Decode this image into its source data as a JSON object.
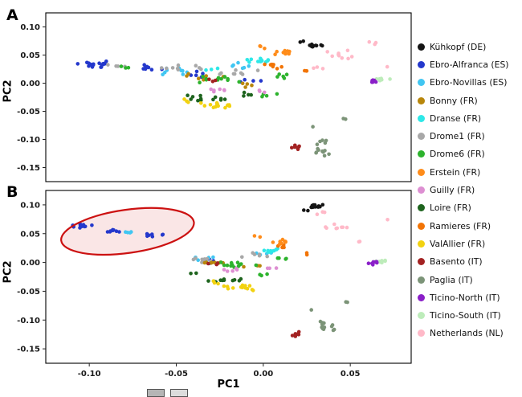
{
  "figure": {
    "panel_a_label": "A",
    "panel_b_label": "B",
    "xlabel": "PC1",
    "ylabel": "PC2",
    "crop_boxes": [
      {
        "name": "cropped-legend-box-1",
        "color": "#b5b5b5"
      },
      {
        "name": "cropped-legend-box-2",
        "color": "#dcdcdc"
      }
    ]
  },
  "legend": {
    "items": [
      {
        "label": "Kühkopf (DE)",
        "color": "#151515"
      },
      {
        "label": "Ebro-Alfranca (ES)",
        "color": "#2438cc"
      },
      {
        "label": "Ebro-Novillas (ES)",
        "color": "#41c6f2"
      },
      {
        "label": "Bonny (FR)",
        "color": "#b8860b"
      },
      {
        "label": "Dranse (FR)",
        "color": "#2ee8e8"
      },
      {
        "label": "Drome1 (FR)",
        "color": "#a8a8a8"
      },
      {
        "label": "Drome6 (FR)",
        "color": "#2db32d"
      },
      {
        "label": "Erstein (FR)",
        "color": "#ff8c1a"
      },
      {
        "label": "Guilly (FR)",
        "color": "#dd8fd2"
      },
      {
        "label": "Loire (FR)",
        "color": "#1e641e"
      },
      {
        "label": "Ramieres (FR)",
        "color": "#f27405"
      },
      {
        "label": "ValAllier (FR)",
        "color": "#f2d210"
      },
      {
        "label": "Basento (IT)",
        "color": "#a32222"
      },
      {
        "label": "Paglia (IT)",
        "color": "#7c9478"
      },
      {
        "label": "Ticino-North (IT)",
        "color": "#8a1fc8"
      },
      {
        "label": "Ticino-South (IT)",
        "color": "#bdecba"
      },
      {
        "label": "Netherlands (NL)",
        "color": "#ffb9c8"
      }
    ]
  },
  "chart_data": [
    {
      "type": "scatter",
      "panel": "A",
      "xlabel": "PC1",
      "ylabel": "PC2",
      "xlim": [
        -0.125,
        0.085
      ],
      "ylim": [
        -0.175,
        0.125
      ],
      "xticks": [
        -0.1,
        -0.05,
        0.0,
        0.05
      ],
      "yticks": [
        0.1,
        0.05,
        0.0,
        -0.05,
        -0.1,
        -0.15
      ],
      "show_x_tick_labels": false,
      "series": [
        {
          "name": "Ebro-Alfranca (ES)",
          "clusters": [
            {
              "x": -0.097,
              "y": 0.033,
              "rx": 0.013,
              "ry": 0.007,
              "n": 20
            },
            {
              "x": -0.066,
              "y": 0.027,
              "rx": 0.009,
              "ry": 0.006,
              "n": 9
            },
            {
              "x": -0.038,
              "y": 0.016,
              "rx": 0.012,
              "ry": 0.007,
              "n": 6
            },
            {
              "x": -0.006,
              "y": 0.004,
              "rx": 0.009,
              "ry": 0.005,
              "n": 4
            }
          ]
        },
        {
          "name": "Ebro-Novillas (ES)",
          "clusters": [
            {
              "x": -0.05,
              "y": 0.022,
              "rx": 0.014,
              "ry": 0.008,
              "n": 9
            },
            {
              "x": -0.013,
              "y": 0.03,
              "rx": 0.011,
              "ry": 0.008,
              "n": 6
            }
          ]
        },
        {
          "name": "Drome1 (FR)",
          "clusters": [
            {
              "x": -0.085,
              "y": 0.031,
              "rx": 0.009,
              "ry": 0.005,
              "n": 4
            },
            {
              "x": -0.05,
              "y": 0.027,
              "rx": 0.018,
              "ry": 0.008,
              "n": 9
            },
            {
              "x": -0.012,
              "y": 0.018,
              "rx": 0.014,
              "ry": 0.009,
              "n": 8
            }
          ]
        },
        {
          "name": "Bonny (FR)",
          "clusters": [
            {
              "x": -0.034,
              "y": 0.012,
              "rx": 0.014,
              "ry": 0.007,
              "n": 8
            },
            {
              "x": -0.009,
              "y": -0.004,
              "rx": 0.009,
              "ry": 0.005,
              "n": 4
            }
          ]
        },
        {
          "name": "Drome6 (FR)",
          "clusters": [
            {
              "x": -0.08,
              "y": 0.03,
              "rx": 0.007,
              "ry": 0.005,
              "n": 3
            },
            {
              "x": -0.026,
              "y": 0.007,
              "rx": 0.017,
              "ry": 0.008,
              "n": 12
            },
            {
              "x": 0.011,
              "y": 0.011,
              "rx": 0.008,
              "ry": 0.007,
              "n": 5
            },
            {
              "x": 0.002,
              "y": -0.02,
              "rx": 0.007,
              "ry": 0.005,
              "n": 4
            }
          ]
        },
        {
          "name": "Guilly (FR)",
          "clusters": [
            {
              "x": -0.028,
              "y": -0.012,
              "rx": 0.01,
              "ry": 0.006,
              "n": 6
            },
            {
              "x": 0.0,
              "y": -0.015,
              "rx": 0.005,
              "ry": 0.004,
              "n": 3
            }
          ]
        },
        {
          "name": "Loire (FR)",
          "clusters": [
            {
              "x": -0.033,
              "y": -0.028,
              "rx": 0.013,
              "ry": 0.007,
              "n": 12
            },
            {
              "x": -0.009,
              "y": -0.018,
              "rx": 0.007,
              "ry": 0.005,
              "n": 4
            }
          ]
        },
        {
          "name": "ValAllier (FR)",
          "clusters": [
            {
              "x": -0.024,
              "y": -0.04,
              "rx": 0.013,
              "ry": 0.006,
              "n": 14
            },
            {
              "x": -0.042,
              "y": -0.031,
              "rx": 0.005,
              "ry": 0.004,
              "n": 3
            }
          ]
        },
        {
          "name": "Dranse (FR)",
          "clusters": [
            {
              "x": -0.001,
              "y": 0.04,
              "rx": 0.009,
              "ry": 0.006,
              "n": 12
            },
            {
              "x": -0.029,
              "y": 0.024,
              "rx": 0.006,
              "ry": 0.004,
              "n": 3
            }
          ]
        },
        {
          "name": "Ramieres (FR)",
          "clusters": [
            {
              "x": 0.006,
              "y": 0.031,
              "rx": 0.008,
              "ry": 0.006,
              "n": 7
            },
            {
              "x": 0.022,
              "y": 0.021,
              "rx": 0.004,
              "ry": 0.004,
              "n": 3
            }
          ]
        },
        {
          "name": "Erstein (FR)",
          "clusters": [
            {
              "x": 0.012,
              "y": 0.054,
              "rx": 0.006,
              "ry": 0.009,
              "n": 8
            },
            {
              "x": -0.002,
              "y": 0.064,
              "rx": 0.004,
              "ry": 0.004,
              "n": 3
            }
          ]
        },
        {
          "name": "Basento (IT)",
          "clusters": [
            {
              "x": 0.019,
              "y": -0.115,
              "rx": 0.003,
              "ry": 0.007,
              "n": 7
            },
            {
              "x": -0.027,
              "y": 0.004,
              "rx": 0.006,
              "ry": 0.004,
              "n": 3
            }
          ]
        },
        {
          "name": "Paglia (IT)",
          "clusters": [
            {
              "x": 0.034,
              "y": -0.113,
              "rx": 0.005,
              "ry": 0.017,
              "n": 14
            },
            {
              "x": 0.046,
              "y": -0.065,
              "rx": 0.002,
              "ry": 0.003,
              "n": 2
            },
            {
              "x": 0.029,
              "y": -0.076,
              "rx": 0.002,
              "ry": 0.002,
              "n": 1
            }
          ]
        },
        {
          "name": "Ticino-South (IT)",
          "clusters": [
            {
              "x": 0.067,
              "y": 0.007,
              "rx": 0.006,
              "ry": 0.004,
              "n": 7
            }
          ]
        },
        {
          "name": "Ticino-North (IT)",
          "clusters": [
            {
              "x": 0.062,
              "y": 0.004,
              "rx": 0.004,
              "ry": 0.006,
              "n": 7
            }
          ]
        },
        {
          "name": "Netherlands (NL)",
          "clusters": [
            {
              "x": 0.045,
              "y": 0.05,
              "rx": 0.009,
              "ry": 0.012,
              "n": 9
            },
            {
              "x": 0.063,
              "y": 0.072,
              "rx": 0.004,
              "ry": 0.003,
              "n": 3
            },
            {
              "x": 0.031,
              "y": 0.026,
              "rx": 0.004,
              "ry": 0.004,
              "n": 3
            },
            {
              "x": 0.072,
              "y": 0.03,
              "rx": 0.002,
              "ry": 0.002,
              "n": 1
            }
          ]
        },
        {
          "name": "Kühkopf (DE)",
          "clusters": [
            {
              "x": 0.03,
              "y": 0.067,
              "rx": 0.005,
              "ry": 0.004,
              "n": 13
            },
            {
              "x": 0.023,
              "y": 0.073,
              "rx": 0.002,
              "ry": 0.002,
              "n": 2
            }
          ]
        }
      ]
    },
    {
      "type": "scatter",
      "panel": "B",
      "xlabel": "PC1",
      "ylabel": "PC2",
      "xlim": [
        -0.125,
        0.085
      ],
      "ylim": [
        -0.175,
        0.125
      ],
      "xticks": [
        -0.1,
        -0.05,
        0.0,
        0.05
      ],
      "yticks": [
        0.1,
        0.05,
        0.0,
        -0.05,
        -0.1,
        -0.15
      ],
      "show_x_tick_labels": true,
      "highlight_ellipse": {
        "cx": -0.078,
        "cy": 0.054,
        "rx": 0.0385,
        "ry": 0.0375,
        "angle_deg": -8,
        "stroke": "#cc1111",
        "stroke_width": 2.2,
        "fill": "#f2b8b8",
        "fill_opacity": 0.35
      },
      "series": [
        {
          "name": "Ebro-Alfranca (ES)",
          "clusters": [
            {
              "x": -0.105,
              "y": 0.063,
              "rx": 0.008,
              "ry": 0.005,
              "n": 12
            },
            {
              "x": -0.085,
              "y": 0.055,
              "rx": 0.008,
              "ry": 0.005,
              "n": 8
            },
            {
              "x": -0.064,
              "y": 0.047,
              "rx": 0.008,
              "ry": 0.004,
              "n": 7
            },
            {
              "x": -0.031,
              "y": 0.001,
              "rx": 0.009,
              "ry": 0.005,
              "n": 4
            }
          ]
        },
        {
          "name": "Ebro-Novillas (ES)",
          "clusters": [
            {
              "x": -0.076,
              "y": 0.052,
              "rx": 0.01,
              "ry": 0.004,
              "n": 4
            },
            {
              "x": -0.036,
              "y": 0.006,
              "rx": 0.012,
              "ry": 0.006,
              "n": 6
            },
            {
              "x": 0.0,
              "y": 0.016,
              "rx": 0.008,
              "ry": 0.005,
              "n": 4
            }
          ]
        },
        {
          "name": "Drome1 (FR)",
          "clusters": [
            {
              "x": -0.036,
              "y": 0.003,
              "rx": 0.014,
              "ry": 0.006,
              "n": 9
            },
            {
              "x": -0.005,
              "y": 0.012,
              "rx": 0.01,
              "ry": 0.006,
              "n": 6
            }
          ]
        },
        {
          "name": "Bonny (FR)",
          "clusters": [
            {
              "x": -0.029,
              "y": 0.0,
              "rx": 0.012,
              "ry": 0.005,
              "n": 8
            },
            {
              "x": -0.007,
              "y": -0.008,
              "rx": 0.007,
              "ry": 0.004,
              "n": 3
            }
          ]
        },
        {
          "name": "Drome6 (FR)",
          "clusters": [
            {
              "x": -0.016,
              "y": -0.004,
              "rx": 0.017,
              "ry": 0.007,
              "n": 12
            },
            {
              "x": 0.01,
              "y": 0.006,
              "rx": 0.006,
              "ry": 0.004,
              "n": 4
            },
            {
              "x": 0.0,
              "y": -0.022,
              "rx": 0.006,
              "ry": 0.004,
              "n": 3
            }
          ]
        },
        {
          "name": "Guilly (FR)",
          "clusters": [
            {
              "x": -0.021,
              "y": -0.014,
              "rx": 0.008,
              "ry": 0.005,
              "n": 5
            },
            {
              "x": 0.004,
              "y": -0.01,
              "rx": 0.004,
              "ry": 0.003,
              "n": 3
            }
          ]
        },
        {
          "name": "Loire (FR)",
          "clusters": [
            {
              "x": -0.022,
              "y": -0.03,
              "rx": 0.012,
              "ry": 0.006,
              "n": 11
            },
            {
              "x": -0.04,
              "y": -0.02,
              "rx": 0.004,
              "ry": 0.003,
              "n": 2
            }
          ]
        },
        {
          "name": "ValAllier (FR)",
          "clusters": [
            {
              "x": -0.013,
              "y": -0.045,
              "rx": 0.012,
              "ry": 0.007,
              "n": 14
            },
            {
              "x": -0.03,
              "y": -0.035,
              "rx": 0.005,
              "ry": 0.004,
              "n": 3
            }
          ]
        },
        {
          "name": "Dranse (FR)",
          "clusters": [
            {
              "x": 0.004,
              "y": 0.02,
              "rx": 0.008,
              "ry": 0.005,
              "n": 10
            }
          ]
        },
        {
          "name": "Ramieres (FR)",
          "clusters": [
            {
              "x": 0.013,
              "y": 0.028,
              "rx": 0.006,
              "ry": 0.004,
              "n": 5
            },
            {
              "x": 0.025,
              "y": 0.015,
              "rx": 0.003,
              "ry": 0.003,
              "n": 2
            }
          ]
        },
        {
          "name": "Erstein (FR)",
          "clusters": [
            {
              "x": 0.01,
              "y": 0.036,
              "rx": 0.006,
              "ry": 0.008,
              "n": 8
            },
            {
              "x": -0.003,
              "y": 0.045,
              "rx": 0.003,
              "ry": 0.003,
              "n": 2
            }
          ]
        },
        {
          "name": "Basento (IT)",
          "clusters": [
            {
              "x": 0.019,
              "y": -0.124,
              "rx": 0.003,
              "ry": 0.006,
              "n": 7
            },
            {
              "x": -0.025,
              "y": -0.002,
              "rx": 0.007,
              "ry": 0.004,
              "n": 3
            }
          ]
        },
        {
          "name": "Paglia (IT)",
          "clusters": [
            {
              "x": 0.036,
              "y": -0.111,
              "rx": 0.005,
              "ry": 0.016,
              "n": 13
            },
            {
              "x": 0.047,
              "y": -0.07,
              "rx": 0.002,
              "ry": 0.002,
              "n": 2
            },
            {
              "x": 0.028,
              "y": -0.082,
              "rx": 0.002,
              "ry": 0.002,
              "n": 1
            }
          ]
        },
        {
          "name": "Ticino-South (IT)",
          "clusters": [
            {
              "x": 0.068,
              "y": 0.002,
              "rx": 0.006,
              "ry": 0.004,
              "n": 7
            }
          ]
        },
        {
          "name": "Ticino-North (IT)",
          "clusters": [
            {
              "x": 0.063,
              "y": -0.001,
              "rx": 0.004,
              "ry": 0.005,
              "n": 7
            }
          ]
        },
        {
          "name": "Netherlands (NL)",
          "clusters": [
            {
              "x": 0.042,
              "y": 0.06,
              "rx": 0.01,
              "ry": 0.012,
              "n": 8
            },
            {
              "x": 0.034,
              "y": 0.086,
              "rx": 0.004,
              "ry": 0.004,
              "n": 3
            },
            {
              "x": 0.055,
              "y": 0.035,
              "rx": 0.004,
              "ry": 0.003,
              "n": 2
            },
            {
              "x": 0.072,
              "y": 0.074,
              "rx": 0.002,
              "ry": 0.002,
              "n": 1
            }
          ]
        },
        {
          "name": "Kühkopf (DE)",
          "clusters": [
            {
              "x": 0.03,
              "y": 0.098,
              "rx": 0.005,
              "ry": 0.004,
              "n": 13
            },
            {
              "x": 0.024,
              "y": 0.09,
              "rx": 0.002,
              "ry": 0.002,
              "n": 2
            }
          ]
        }
      ]
    }
  ]
}
